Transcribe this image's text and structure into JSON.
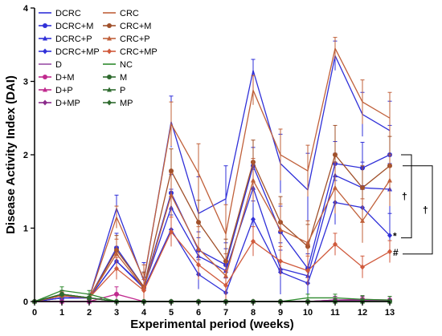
{
  "chart_data": {
    "type": "line",
    "title": "",
    "xlabel": "Experimental period (weeks)",
    "ylabel": "Disease Activity Index (DAI)",
    "xlim": [
      0,
      13
    ],
    "ylim": [
      0,
      4
    ],
    "x": [
      0,
      1,
      2,
      3,
      4,
      5,
      6,
      7,
      8,
      9,
      10,
      11,
      12,
      13
    ],
    "x_ticks": [
      "0",
      "1",
      "2",
      "3",
      "4",
      "5",
      "6",
      "7",
      "8",
      "9",
      "10",
      "11",
      "12",
      "13"
    ],
    "y_ticks": [
      "0",
      "1",
      "2",
      "3",
      "4"
    ],
    "grid": false,
    "legend_position": "top-left, inside plot area",
    "series": [
      {
        "name": "DCRC",
        "color": "#3030d8",
        "marker": "none",
        "values": [
          0,
          0.05,
          0.05,
          1.27,
          0.28,
          2.45,
          1.2,
          1.4,
          3.15,
          1.88,
          1.52,
          3.35,
          2.55,
          2.33
        ],
        "errors": [
          0,
          0.05,
          0.05,
          0.18,
          0.25,
          0.35,
          0.5,
          0.45,
          0.15,
          0.4,
          0.5,
          0.2,
          0.3,
          0.4
        ]
      },
      {
        "name": "DCRC+M",
        "color": "#3030d8",
        "marker": "circle",
        "values": [
          0,
          0.05,
          0.05,
          0.73,
          0.2,
          1.48,
          0.7,
          0.5,
          1.85,
          0.95,
          0.45,
          1.88,
          1.82,
          2.0
        ],
        "errors": [
          0,
          0.05,
          0.05,
          0.2,
          0.2,
          0.25,
          0.25,
          0.3,
          0.25,
          0.35,
          0.3,
          0.3,
          0.35,
          0.4
        ]
      },
      {
        "name": "DCRC+P",
        "color": "#3030d8",
        "marker": "triangle",
        "values": [
          0,
          0.05,
          0.05,
          0.55,
          0.2,
          1.28,
          0.62,
          0.42,
          1.55,
          0.45,
          0.35,
          1.72,
          1.55,
          1.53
        ],
        "errors": [
          0,
          0.05,
          0.05,
          0.2,
          0.2,
          0.25,
          0.25,
          0.3,
          0.25,
          0.35,
          0.3,
          0.3,
          0.35,
          0.35
        ]
      },
      {
        "name": "DCRC+MP",
        "color": "#3030d8",
        "marker": "diamond",
        "values": [
          0,
          0.05,
          0.05,
          0.55,
          0.18,
          0.98,
          0.37,
          0.12,
          1.12,
          0.4,
          0.25,
          1.35,
          1.28,
          0.9
        ],
        "errors": [
          0,
          0.05,
          0.05,
          0.15,
          0.15,
          0.2,
          0.2,
          0.2,
          0.25,
          0.3,
          0.2,
          0.3,
          0.3,
          0.3
        ]
      },
      {
        "name": "D",
        "color": "#9a4fa6",
        "marker": "none",
        "values": [
          0,
          0,
          0,
          0,
          0,
          0,
          0,
          0,
          0,
          0,
          0,
          0,
          0,
          0
        ],
        "errors": [
          0,
          0,
          0,
          0,
          0,
          0,
          0,
          0,
          0,
          0,
          0,
          0,
          0,
          0
        ]
      },
      {
        "name": "D+M",
        "color": "#c02a8e",
        "marker": "circle",
        "values": [
          0,
          0,
          0,
          0.1,
          0,
          0,
          0,
          0,
          0,
          0,
          0,
          0.02,
          0.03,
          0.02
        ],
        "errors": [
          0,
          0,
          0,
          0.1,
          0,
          0,
          0,
          0,
          0,
          0,
          0,
          0.05,
          0.05,
          0.05
        ]
      },
      {
        "name": "D+P",
        "color": "#c02a8e",
        "marker": "triangle",
        "values": [
          0,
          0,
          0,
          0,
          0,
          0,
          0,
          0,
          0,
          0,
          0,
          0.02,
          0.02,
          0.02
        ],
        "errors": [
          0,
          0,
          0,
          0,
          0,
          0,
          0,
          0,
          0,
          0,
          0,
          0.05,
          0.05,
          0.05
        ]
      },
      {
        "name": "D+MP",
        "color": "#8a2a8a",
        "marker": "diamond",
        "values": [
          0,
          0,
          0,
          0,
          0,
          0,
          0,
          0,
          0,
          0,
          0,
          0.02,
          0.02,
          0.02
        ],
        "errors": [
          0,
          0,
          0,
          0,
          0,
          0,
          0,
          0,
          0,
          0,
          0,
          0.05,
          0.05,
          0.05
        ]
      },
      {
        "name": "CRC",
        "color": "#c0603a",
        "marker": "none",
        "values": [
          0,
          0.08,
          0.05,
          1.15,
          0.3,
          2.42,
          1.75,
          0.92,
          2.88,
          2.0,
          1.78,
          3.45,
          2.72,
          2.5
        ],
        "errors": [
          0,
          0.05,
          0.05,
          0.15,
          0.2,
          0.3,
          0.4,
          0.4,
          0.2,
          0.35,
          0.35,
          0.15,
          0.3,
          0.35
        ]
      },
      {
        "name": "CRC+M",
        "color": "#a0502a",
        "marker": "circle",
        "values": [
          0,
          0.08,
          0.05,
          0.7,
          0.2,
          1.78,
          1.08,
          0.55,
          1.9,
          1.08,
          0.75,
          2.0,
          1.55,
          1.85
        ],
        "errors": [
          0,
          0.05,
          0.05,
          0.2,
          0.2,
          0.3,
          0.3,
          0.3,
          0.3,
          0.35,
          0.3,
          0.4,
          0.3,
          0.4
        ]
      },
      {
        "name": "CRC+P",
        "color": "#c0603a",
        "marker": "triangle",
        "values": [
          0,
          0.08,
          0.05,
          0.65,
          0.18,
          1.45,
          0.72,
          0.35,
          1.65,
          0.98,
          0.8,
          1.55,
          1.1,
          1.65
        ],
        "errors": [
          0,
          0.05,
          0.05,
          0.2,
          0.2,
          0.3,
          0.3,
          0.3,
          0.3,
          0.35,
          0.3,
          0.35,
          0.3,
          0.35
        ]
      },
      {
        "name": "CRC+MP",
        "color": "#d05a3c",
        "marker": "diamond",
        "values": [
          0,
          0.08,
          0.05,
          0.45,
          0.15,
          0.95,
          0.5,
          0.22,
          0.82,
          0.55,
          0.42,
          0.78,
          0.47,
          0.68
        ],
        "errors": [
          0,
          0.05,
          0.05,
          0.15,
          0.15,
          0.2,
          0.2,
          0.2,
          0.2,
          0.2,
          0.2,
          0.15,
          0.15,
          0.15
        ]
      },
      {
        "name": "NC",
        "color": "#2e8a2e",
        "marker": "none",
        "values": [
          0,
          0.15,
          0.1,
          0,
          0,
          0,
          0,
          0,
          0,
          0,
          0.05,
          0.05,
          0.03,
          0.02
        ],
        "errors": [
          0,
          0.05,
          0.05,
          0,
          0,
          0,
          0,
          0,
          0,
          0,
          0.05,
          0.05,
          0.05,
          0.05
        ]
      },
      {
        "name": "M",
        "color": "#2e6a2e",
        "marker": "circle",
        "values": [
          0,
          0.1,
          0.05,
          0,
          0,
          0,
          0,
          0,
          0,
          0,
          0,
          0,
          0,
          0
        ],
        "errors": [
          0,
          0.05,
          0.05,
          0,
          0,
          0,
          0,
          0,
          0,
          0,
          0,
          0,
          0,
          0
        ]
      },
      {
        "name": "P",
        "color": "#2e6a2e",
        "marker": "triangle",
        "values": [
          0,
          0.1,
          0.05,
          0,
          0,
          0,
          0,
          0,
          0,
          0,
          0,
          0,
          0,
          0
        ],
        "errors": [
          0,
          0.05,
          0.05,
          0,
          0,
          0,
          0,
          0,
          0,
          0,
          0,
          0,
          0,
          0
        ]
      },
      {
        "name": "MP",
        "color": "#2e6a2e",
        "marker": "diamond",
        "values": [
          0,
          0.1,
          0.05,
          0,
          0,
          0,
          0,
          0,
          0,
          0,
          0,
          0,
          0,
          0
        ],
        "errors": [
          0,
          0.05,
          0.05,
          0,
          0,
          0,
          0,
          0,
          0,
          0,
          0,
          0,
          0,
          0
        ]
      }
    ],
    "annotations": [
      {
        "text": "*",
        "series": "DCRC+MP",
        "x": 13
      },
      {
        "text": "#",
        "series": "CRC+MP",
        "x": 13
      },
      {
        "text": "†",
        "bracket": [
          "DCRC+M",
          "DCRC+MP"
        ]
      },
      {
        "text": "†",
        "bracket": [
          "CRC+M",
          "CRC+MP"
        ]
      }
    ]
  }
}
